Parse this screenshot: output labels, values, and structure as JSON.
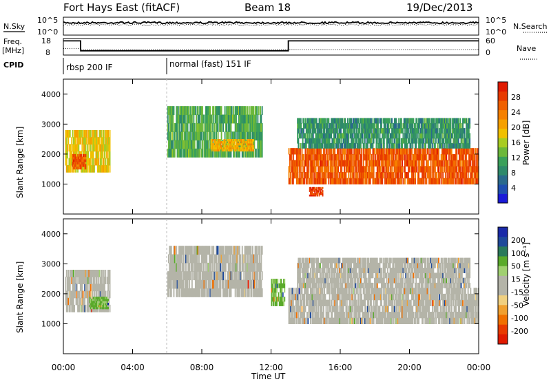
{
  "header": {
    "title": "Fort Hays East (fitACF)",
    "beam": "Beam 18",
    "date": "19/Dec/2013"
  },
  "top_panels": {
    "nsky_label": "N.Sky",
    "nsearch_label": "N.Search",
    "freq_label_top": "Freq.",
    "freq_label_unit": "[MHz]",
    "nave_label": "Nave",
    "cpid_label": "CPID",
    "noise_ticks_left": [
      "10^5",
      "10^0"
    ],
    "noise_ticks_right": [
      "10^5",
      "10^0"
    ],
    "freq_ticks": [
      "18",
      "8"
    ],
    "nave_ticks": [
      "60",
      "0"
    ],
    "cpid_segments": [
      "rbsp 200 IF",
      "normal (fast) 151 IF"
    ]
  },
  "colorbars": {
    "power": {
      "label": "Power [dB]",
      "ticks": [
        "4",
        "8",
        "12",
        "16",
        "20",
        "24",
        "28"
      ],
      "colors": [
        "#1a1ad8",
        "#1f4fb0",
        "#2a6a8c",
        "#2e8a6a",
        "#3aa05a",
        "#6cb83a",
        "#a8cc22",
        "#f0c000",
        "#f5a000",
        "#f58000",
        "#f06000",
        "#e83a00",
        "#e01a00"
      ]
    },
    "velocity": {
      "label": "Velocity [m s⁻¹]",
      "ticks": [
        "200",
        "100",
        "50",
        "15",
        "-15",
        "-50",
        "-100",
        "-200"
      ],
      "colors": [
        "#1a2aa8",
        "#1f4a9a",
        "#2a7a5a",
        "#5aaa2a",
        "#a0d070",
        "#b4b4a8",
        "#b4b4a8",
        "#f0d080",
        "#f0a030",
        "#f07000",
        "#e83a00",
        "#e01a00"
      ]
    }
  },
  "chart_data": [
    {
      "type": "line",
      "panel": "noise",
      "xlabel": "",
      "series": [
        {
          "name": "N.Sky",
          "note": "solid"
        },
        {
          "name": "N.Search",
          "note": "dotted"
        }
      ],
      "x": [
        "00:00",
        "04:00",
        "08:00",
        "12:00",
        "16:00",
        "20:00",
        "00:00"
      ],
      "y_sky_log10": [
        4.2,
        4.2,
        4.2,
        4.2,
        4.2,
        4.2,
        4.2
      ]
    },
    {
      "type": "line",
      "panel": "freq-nave",
      "series": [
        {
          "name": "Freq.",
          "x_hours": [
            0,
            1.0,
            1.0,
            13.0,
            13.0,
            24
          ],
          "values": [
            16.6,
            16.6,
            10.6,
            10.6,
            16.6,
            16.6
          ]
        },
        {
          "name": "Nave",
          "x_hours": [
            0,
            1.0,
            1.0,
            24
          ],
          "values": [
            24,
            24,
            20,
            20
          ]
        }
      ],
      "ylim_left": [
        8,
        18
      ],
      "ylim_right": [
        0,
        60
      ]
    },
    {
      "type": "heatmap",
      "panel": "power",
      "xlabel": "",
      "ylabel": "Slant Range [km]",
      "x_ticks": [
        "00:00",
        "04:00",
        "08:00",
        "12:00",
        "16:00",
        "20:00",
        "00:00"
      ],
      "xlim_hours": [
        0,
        24
      ],
      "y_ticks": [
        1000,
        2000,
        3000,
        4000
      ],
      "ylim_km": [
        0,
        4500
      ],
      "echo_regions": [
        {
          "t0": 0.1,
          "t1": 2.7,
          "r0": 1400,
          "r1": 2800,
          "power": 18
        },
        {
          "t0": 0.5,
          "t1": 1.3,
          "r0": 1500,
          "r1": 2000,
          "power": 26
        },
        {
          "t0": 6.0,
          "t1": 11.5,
          "r0": 1900,
          "r1": 3600,
          "power": 12
        },
        {
          "t0": 8.5,
          "t1": 11.0,
          "r0": 2100,
          "r1": 2500,
          "power": 20
        },
        {
          "t0": 13.0,
          "t1": 24.0,
          "r0": 1000,
          "r1": 2200,
          "power": 26
        },
        {
          "t0": 14.2,
          "t1": 15.0,
          "r0": 600,
          "r1": 900,
          "power": 28
        },
        {
          "t0": 13.5,
          "t1": 23.5,
          "r0": 2200,
          "r1": 3200,
          "power": 10
        }
      ]
    },
    {
      "type": "heatmap",
      "panel": "velocity",
      "xlabel": "Time UT",
      "ylabel": "Slant Range [km]",
      "x_ticks": [
        "00:00",
        "04:00",
        "08:00",
        "12:00",
        "16:00",
        "20:00",
        "00:00"
      ],
      "xlim_hours": [
        0,
        24
      ],
      "y_ticks": [
        1000,
        2000,
        3000,
        4000
      ],
      "ylim_km": [
        0,
        4500
      ],
      "echo_regions": [
        {
          "t0": 0.1,
          "t1": 2.7,
          "r0": 1400,
          "r1": 2800,
          "velocity": 0
        },
        {
          "t0": 1.5,
          "t1": 2.6,
          "r0": 1500,
          "r1": 1900,
          "velocity": 40
        },
        {
          "t0": 6.0,
          "t1": 11.5,
          "r0": 1900,
          "r1": 3600,
          "velocity": 0
        },
        {
          "t0": 12.0,
          "t1": 12.8,
          "r0": 1600,
          "r1": 2500,
          "velocity": 40
        },
        {
          "t0": 13.0,
          "t1": 24.0,
          "r0": 1000,
          "r1": 2200,
          "velocity": 0
        },
        {
          "t0": 13.5,
          "t1": 23.5,
          "r0": 2200,
          "r1": 3200,
          "velocity": 0
        }
      ]
    }
  ]
}
